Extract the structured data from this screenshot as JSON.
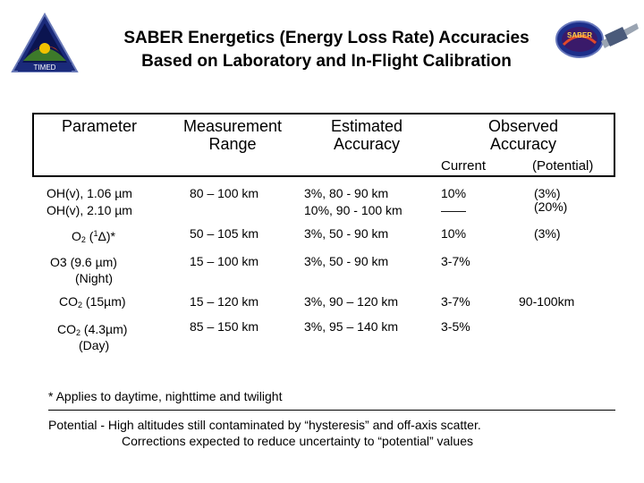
{
  "title": {
    "line1": "SABER Energetics (Energy Loss Rate) Accuracies",
    "line2": "Based on Laboratory and In-Flight Calibration"
  },
  "logos": {
    "left_text": "TIMED",
    "right_text": "SABER"
  },
  "table": {
    "headers": {
      "parameter": "Parameter",
      "range": "Measurement Range",
      "estimated": "Estimated Accuracy",
      "observed": "Observed Accuracy",
      "current": "Current",
      "potential": "(Potential)"
    },
    "rows": [
      {
        "p1": "OH(v), 1.06 µm",
        "p2": "OH(v), 2.10 µm",
        "range": "80 – 100 km",
        "est1": "3%, 80 - 90 km",
        "est2": "10%, 90 - 100 km",
        "cur1": "10%",
        "cur2": "——",
        "pot1": "(3%)",
        "pot2": "(20%)"
      },
      {
        "p_main": "O",
        "p_sub": "2",
        "p_open": " (",
        "p_sup": "1",
        "p_rest": "Δ)*",
        "range": "50 – 105 km",
        "est": "3%, 50 -  90 km",
        "cur": "10%",
        "pot": "(3%)"
      },
      {
        "p1": "O3 (9.6 µm)",
        "p2": "(Night)",
        "range": "15 – 100 km",
        "est": "3%, 50 - 90 km",
        "cur": "3-7%"
      },
      {
        "p_main": "CO",
        "p_sub": "2",
        "p_rest": " (15µm)",
        "range": "15 – 120 km",
        "est": "3%, 90 – 120 km",
        "cur": "3-7%",
        "pot": "90-100km"
      },
      {
        "p_main": "CO",
        "p_sub": "2",
        "p_rest": " (4.3µm)",
        "p2": "(Day)",
        "range": "85 – 150 km",
        "est": "3%,  95 – 140 km",
        "cur": "3-5%"
      }
    ]
  },
  "footnote": "*  Applies to daytime, nighttime and twilight",
  "potential_note": {
    "line1": "Potential - High altitudes still contaminated by “hysteresis” and off-axis scatter.",
    "line2": "Corrections expected to reduce uncertainty to “potential” values"
  }
}
